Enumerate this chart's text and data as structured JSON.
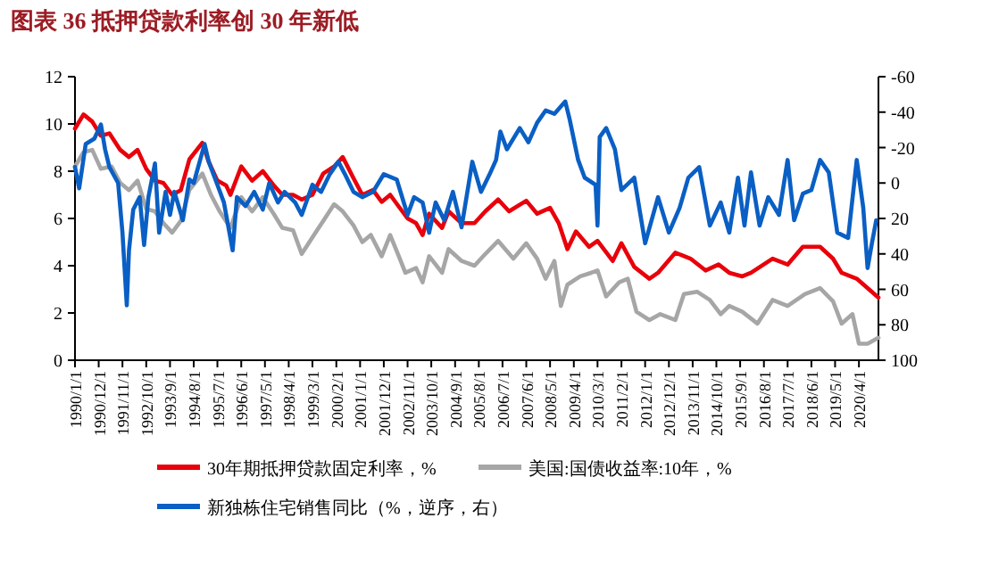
{
  "chart_data": {
    "type": "line",
    "title": "图表 36  抵押贷款利率创 30 年新低",
    "xlim": [
      "1990-01-01",
      "2021-01-01"
    ],
    "xticks": [
      {
        "value": "1990-01-01",
        "label": "1990/1/1"
      },
      {
        "value": "1990-12-01",
        "label": "1990/12/1"
      },
      {
        "value": "1991-11-01",
        "label": "1991/11/1"
      },
      {
        "value": "1992-10-01",
        "label": "1992/10/1"
      },
      {
        "value": "1993-09-01",
        "label": "1993/9/1"
      },
      {
        "value": "1994-08-01",
        "label": "1994/8/1"
      },
      {
        "value": "1995-07-01",
        "label": "1995/7/1"
      },
      {
        "value": "1996-06-01",
        "label": "1996/6/1"
      },
      {
        "value": "1997-05-01",
        "label": "1997/5/1"
      },
      {
        "value": "1998-04-01",
        "label": "1998/4/1"
      },
      {
        "value": "1999-03-01",
        "label": "1999/3/1"
      },
      {
        "value": "2000-02-01",
        "label": "2000/2/1"
      },
      {
        "value": "2001-01-01",
        "label": "2001/1/1"
      },
      {
        "value": "2001-12-01",
        "label": "2001/12/1"
      },
      {
        "value": "2002-11-01",
        "label": "2002/11/1"
      },
      {
        "value": "2003-10-01",
        "label": "2003/10/1"
      },
      {
        "value": "2004-09-01",
        "label": "2004/9/1"
      },
      {
        "value": "2005-08-01",
        "label": "2005/8/1"
      },
      {
        "value": "2006-07-01",
        "label": "2006/7/1"
      },
      {
        "value": "2007-06-01",
        "label": "2007/6/1"
      },
      {
        "value": "2008-05-01",
        "label": "2008/5/1"
      },
      {
        "value": "2009-04-01",
        "label": "2009/4/1"
      },
      {
        "value": "2010-03-01",
        "label": "2010/3/1"
      },
      {
        "value": "2011-02-01",
        "label": "2011/2/1"
      },
      {
        "value": "2012-01-01",
        "label": "2012/1/1"
      },
      {
        "value": "2012-12-01",
        "label": "2012/12/1"
      },
      {
        "value": "2013-11-01",
        "label": "2013/11/1"
      },
      {
        "value": "2014-10-01",
        "label": "2014/10/1"
      },
      {
        "value": "2015-09-01",
        "label": "2015/9/1"
      },
      {
        "value": "2016-08-01",
        "label": "2016/8/1"
      },
      {
        "value": "2017-07-01",
        "label": "2017/7/1"
      },
      {
        "value": "2018-06-01",
        "label": "2018/6/1"
      },
      {
        "value": "2019-05-01",
        "label": "2019/5/1"
      },
      {
        "value": "2020-04-01",
        "label": "2020/4/1"
      }
    ],
    "ylim": [
      0,
      12
    ],
    "yticks": [
      0,
      2,
      4,
      6,
      8,
      10,
      12
    ],
    "y2lim": [
      100,
      -60
    ],
    "y2ticks": [
      -60,
      -40,
      -20,
      0,
      20,
      40,
      60,
      80,
      100
    ],
    "legend": "bottom",
    "grid": false,
    "line_style": "solid",
    "series": [
      {
        "name": "30年期抵押贷款固定利率，%",
        "color": "#e8000b",
        "x": [
          "1990-01",
          "1990-05",
          "1990-09",
          "1991-01",
          "1991-05",
          "1991-10",
          "1992-02",
          "1992-06",
          "1992-10",
          "1993-02",
          "1993-06",
          "1993-10",
          "1994-02",
          "1994-06",
          "1994-12",
          "1995-03",
          "1995-07",
          "1995-11",
          "1996-01",
          "1996-06",
          "1996-11",
          "1997-04",
          "1997-09",
          "1998-01",
          "1998-06",
          "1998-10",
          "1999-03",
          "1999-08",
          "2000-01",
          "2000-05",
          "2000-10",
          "2001-02",
          "2001-07",
          "2001-11",
          "2002-03",
          "2002-07",
          "2002-11",
          "2003-03",
          "2003-06",
          "2003-09",
          "2004-03",
          "2004-06",
          "2004-12",
          "2005-06",
          "2005-11",
          "2006-05",
          "2006-10",
          "2007-06",
          "2007-11",
          "2008-05",
          "2008-09",
          "2009-01",
          "2009-05",
          "2009-11",
          "2010-03",
          "2010-10",
          "2011-02",
          "2011-08",
          "2012-03",
          "2012-07",
          "2013-03",
          "2013-10",
          "2014-05",
          "2014-11",
          "2015-04",
          "2015-10",
          "2016-02",
          "2016-12",
          "2017-07",
          "2018-02",
          "2018-10",
          "2019-04",
          "2019-08",
          "2020-03",
          "2021-01"
        ],
        "values": [
          9.8,
          10.4,
          10.1,
          9.5,
          9.6,
          8.9,
          8.6,
          8.9,
          8.1,
          7.6,
          7.5,
          7.0,
          7.2,
          8.5,
          9.2,
          8.4,
          7.6,
          7.4,
          7.0,
          8.2,
          7.6,
          8.0,
          7.4,
          7.0,
          7.0,
          6.8,
          7.0,
          7.9,
          8.2,
          8.6,
          7.7,
          7.0,
          7.2,
          6.7,
          7.0,
          6.5,
          6.0,
          5.8,
          5.3,
          6.2,
          5.6,
          6.3,
          5.8,
          5.8,
          6.3,
          6.8,
          6.3,
          6.75,
          6.2,
          6.45,
          5.8,
          4.7,
          5.45,
          4.8,
          5.05,
          4.2,
          4.95,
          3.95,
          3.45,
          3.7,
          4.55,
          4.3,
          3.8,
          4.05,
          3.7,
          3.55,
          3.7,
          4.3,
          4.05,
          4.8,
          4.8,
          4.3,
          3.7,
          3.45,
          2.65
        ]
      },
      {
        "name": "美国:国债收益率:10年，%",
        "color": "#a6a6a6",
        "x": [
          "1990-01",
          "1990-05",
          "1990-09",
          "1991-01",
          "1991-06",
          "1991-10",
          "1992-02",
          "1992-06",
          "1992-10",
          "1993-02",
          "1993-06",
          "1993-10",
          "1994-02",
          "1994-06",
          "1994-12",
          "1995-04",
          "1995-08",
          "1996-01",
          "1996-06",
          "1996-11",
          "1997-04",
          "1997-09",
          "1998-01",
          "1998-06",
          "1998-10",
          "1999-03",
          "1999-08",
          "2000-01",
          "2000-05",
          "2000-10",
          "2001-02",
          "2001-06",
          "2001-11",
          "2002-03",
          "2002-07",
          "2002-10",
          "2003-03",
          "2003-06",
          "2003-09",
          "2004-03",
          "2004-06",
          "2004-12",
          "2005-06",
          "2005-11",
          "2006-05",
          "2006-12",
          "2007-06",
          "2007-11",
          "2008-03",
          "2008-07",
          "2008-10",
          "2009-01",
          "2009-07",
          "2009-12",
          "2010-03",
          "2010-07",
          "2011-01",
          "2011-05",
          "2011-09",
          "2012-03",
          "2012-08",
          "2013-03",
          "2013-07",
          "2014-01",
          "2014-07",
          "2014-12",
          "2015-04",
          "2015-10",
          "2016-05",
          "2016-12",
          "2017-07",
          "2018-03",
          "2018-10",
          "2019-04",
          "2019-08",
          "2020-01",
          "2020-04",
          "2020-08",
          "2021-01"
        ],
        "values": [
          8.2,
          8.8,
          8.9,
          8.1,
          8.2,
          7.5,
          7.2,
          7.6,
          6.4,
          6.3,
          5.8,
          5.4,
          5.9,
          7.2,
          7.9,
          7.0,
          6.3,
          5.6,
          6.9,
          6.3,
          6.9,
          6.2,
          5.6,
          5.5,
          4.5,
          5.2,
          5.9,
          6.6,
          6.3,
          5.7,
          5.0,
          5.3,
          4.4,
          5.3,
          4.4,
          3.7,
          3.9,
          3.3,
          4.4,
          3.7,
          4.7,
          4.2,
          4.0,
          4.5,
          5.05,
          4.3,
          4.95,
          4.3,
          3.45,
          4.2,
          2.3,
          3.2,
          3.55,
          3.7,
          3.8,
          2.7,
          3.3,
          3.45,
          2.05,
          1.7,
          1.95,
          1.7,
          2.8,
          2.9,
          2.55,
          1.95,
          2.3,
          2.05,
          1.55,
          2.55,
          2.3,
          2.8,
          3.05,
          2.5,
          1.55,
          1.95,
          0.7,
          0.7,
          0.95
        ]
      },
      {
        "name": "新独栋住宅销售同比（%，逆序，右）",
        "color": "#0a5fc4",
        "axis": "y2",
        "x": [
          "1990-01",
          "1990-03",
          "1990-06",
          "1990-10",
          "1991-01",
          "1991-03",
          "1991-05",
          "1991-09",
          "1991-11",
          "1992-01",
          "1992-02",
          "1992-04",
          "1992-07",
          "1992-09",
          "1992-11",
          "1993-02",
          "1993-04",
          "1993-07",
          "1993-09",
          "1993-11",
          "1994-03",
          "1994-06",
          "1994-08",
          "1995-01",
          "1995-03",
          "1995-07",
          "1995-10",
          "1996-02",
          "1996-04",
          "1996-08",
          "1996-12",
          "1997-04",
          "1997-07",
          "1997-11",
          "1998-02",
          "1998-07",
          "1998-10",
          "1999-03",
          "1999-07",
          "1999-11",
          "2000-03",
          "2000-06",
          "2000-10",
          "2001-02",
          "2001-07",
          "2001-12",
          "2002-06",
          "2002-11",
          "2003-02",
          "2003-06",
          "2003-09",
          "2003-12",
          "2004-04",
          "2004-08",
          "2004-12",
          "2005-05",
          "2005-09",
          "2006-01",
          "2006-04",
          "2006-06",
          "2006-09",
          "2007-03",
          "2007-07",
          "2007-11",
          "2008-03",
          "2008-07",
          "2008-12",
          "2009-02",
          "2009-06",
          "2009-09",
          "2010-02",
          "2010-03",
          "2010-04",
          "2010-07",
          "2010-11",
          "2011-02",
          "2011-08",
          "2012-01",
          "2012-07",
          "2012-12",
          "2013-05",
          "2013-09",
          "2014-02",
          "2014-07",
          "2014-12",
          "2015-04",
          "2015-08",
          "2015-11",
          "2016-02",
          "2016-06",
          "2016-10",
          "2017-03",
          "2017-07",
          "2017-10",
          "2018-02",
          "2018-06",
          "2018-10",
          "2019-02",
          "2019-06",
          "2019-11",
          "2020-03",
          "2020-06",
          "2020-08",
          "2020-10",
          "2020-12"
        ],
        "values": [
          -9,
          3,
          -22,
          -25,
          -33,
          -19,
          -9,
          0,
          28,
          69,
          38,
          15,
          8,
          35,
          8,
          -11,
          28,
          5,
          18,
          5,
          21,
          -2,
          0,
          -22,
          -12,
          1,
          11,
          38,
          8,
          13,
          5,
          15,
          0,
          11,
          5,
          11,
          18,
          1,
          5,
          -5,
          -12,
          -5,
          5,
          8,
          5,
          -5,
          -2,
          18,
          8,
          11,
          28,
          11,
          21,
          5,
          25,
          -12,
          5,
          -5,
          -13,
          -29,
          -19,
          -31,
          -23,
          -34,
          -41,
          -39,
          -46,
          -36,
          -13,
          -3,
          1,
          24,
          -26,
          -31,
          -19,
          4,
          -3,
          34,
          8,
          28,
          14,
          -3,
          -9,
          24,
          11,
          28,
          -3,
          24,
          -6,
          24,
          8,
          18,
          -13,
          21,
          6,
          4,
          -13,
          -6,
          28,
          31,
          -13,
          14,
          48,
          34,
          21
        ]
      }
    ]
  }
}
